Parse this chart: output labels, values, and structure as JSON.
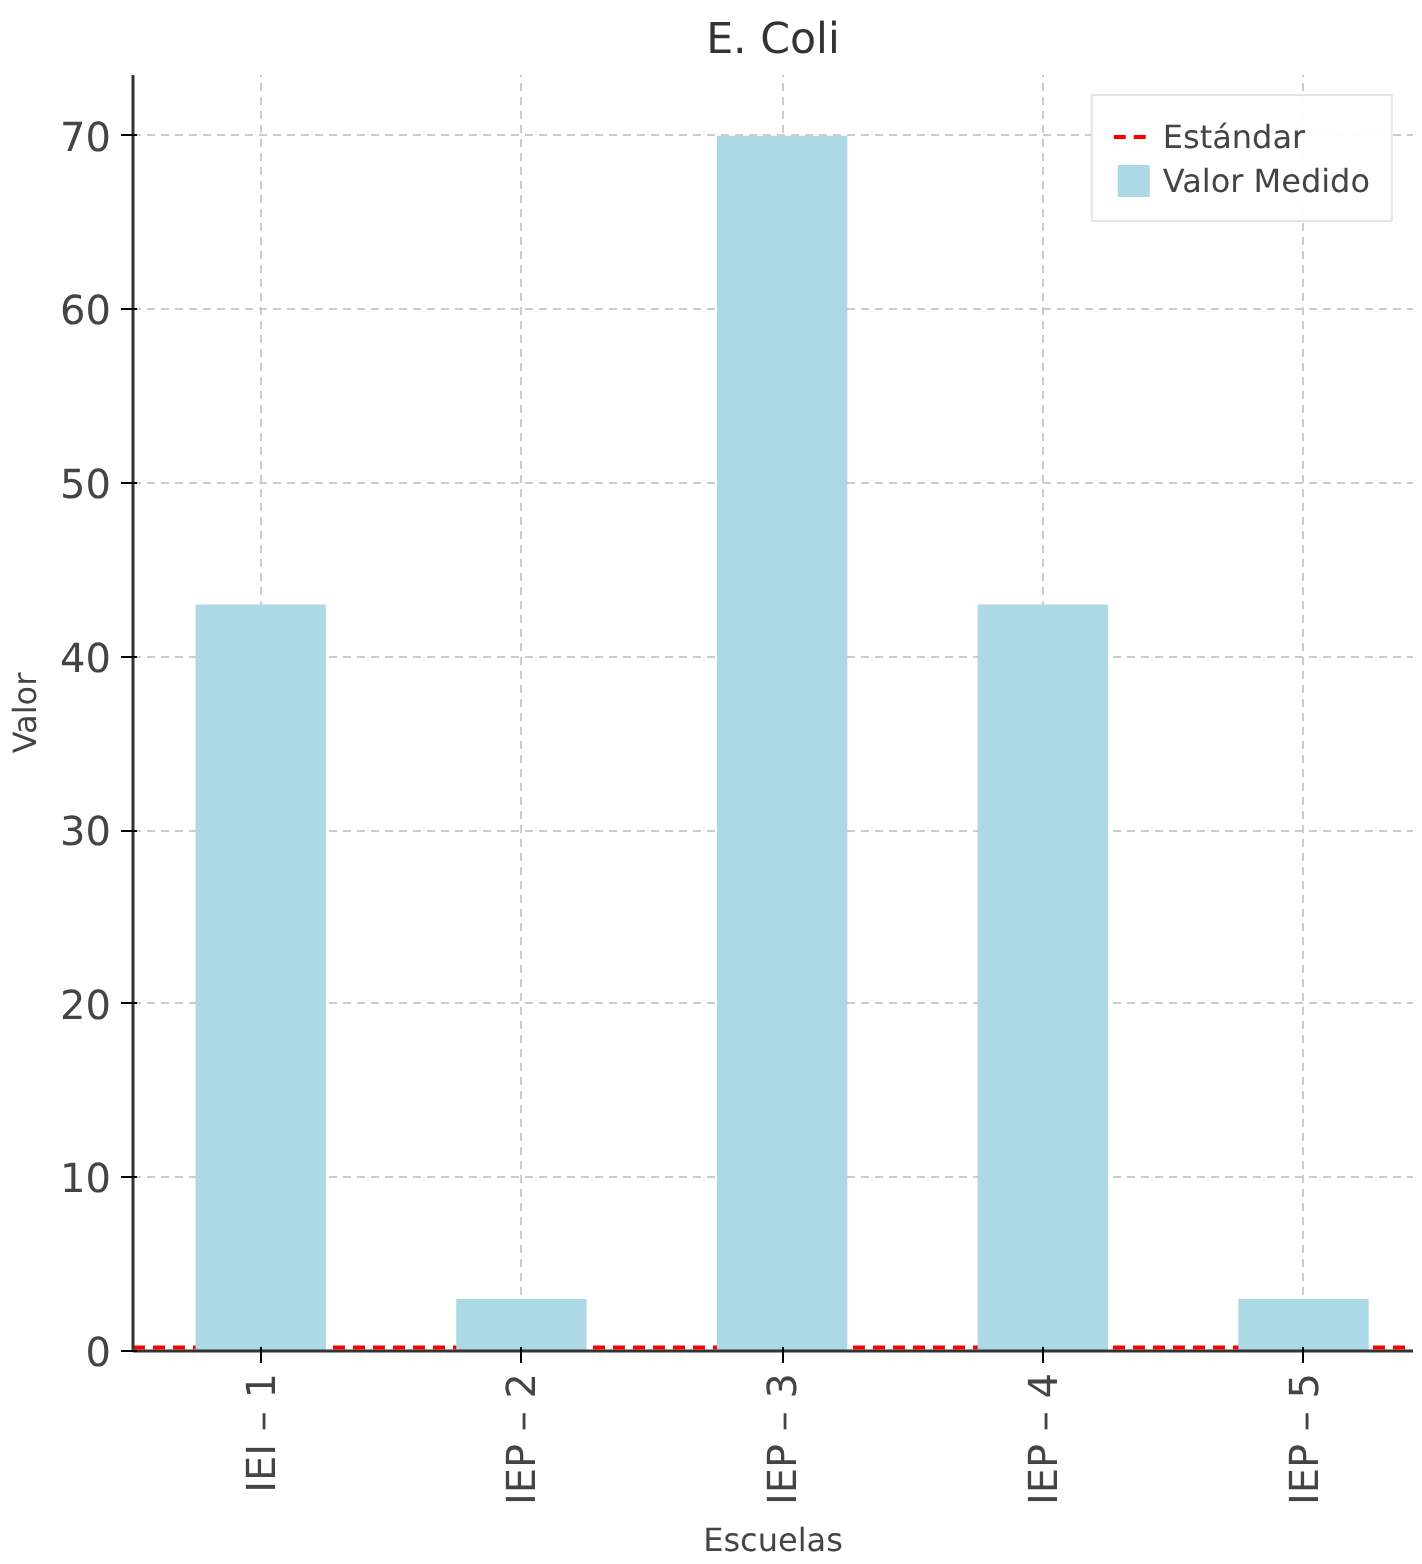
{
  "chart_data": {
    "type": "bar",
    "title": "E. Coli",
    "xlabel": "Escuelas",
    "ylabel": "Valor",
    "categories": [
      "IEI – 1",
      "IEP – 2",
      "IEP – 3",
      "IEP – 4",
      "IEP – 5"
    ],
    "series": [
      {
        "name": "Valor Medido",
        "color": "#add8e6",
        "values": [
          43,
          3,
          70,
          43,
          3
        ]
      }
    ],
    "ref_lines": [
      {
        "axis": "y",
        "value": 0.2,
        "label": "Estándar",
        "color": "#ff0000",
        "line_style": "dashed"
      }
    ],
    "ylim": [
      0,
      73.5
    ],
    "yticks": [
      0,
      10,
      20,
      30,
      40,
      50,
      60,
      70
    ],
    "grid": true,
    "legend": "top right"
  }
}
